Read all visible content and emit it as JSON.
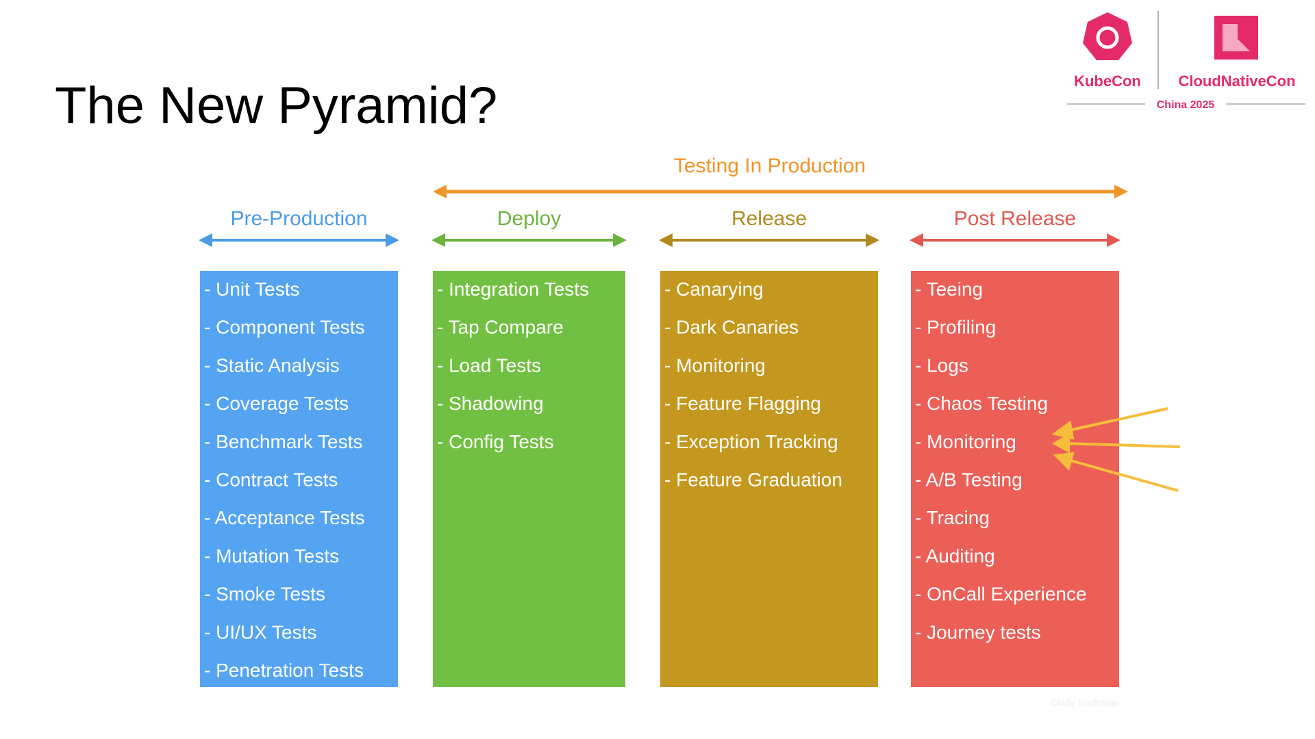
{
  "title": "The New Pyramid?",
  "logo": {
    "left": "KubeCon",
    "right": "CloudNativeCon",
    "sub": "China 2025"
  },
  "span_heading": "Testing In Production",
  "columns": [
    {
      "heading": "Pre-Production",
      "items": [
        "- Unit Tests",
        "- Component Tests",
        "- Static Analysis",
        "- Coverage Tests",
        "- Benchmark Tests",
        "- Contract Tests",
        "- Acceptance Tests",
        "- Mutation Tests",
        "- Smoke Tests",
        "- UI/UX Tests",
        "- Penetration Tests"
      ]
    },
    {
      "heading": "Deploy",
      "items": [
        "- Integration Tests",
        "- Tap Compare",
        "- Load Tests",
        "- Shadowing",
        "- Config Tests"
      ]
    },
    {
      "heading": "Release",
      "items": [
        "- Canarying",
        "- Dark Canaries",
        "- Monitoring",
        "- Feature Flagging",
        "- Exception Tracking",
        "- Feature Graduation"
      ]
    },
    {
      "heading": "Post Release",
      "items": [
        "- Teeing",
        "- Profiling",
        "- Logs",
        "- Chaos Testing",
        "- Monitoring",
        "- A/B Testing",
        "- Tracing",
        "- Auditing",
        "- OnCall Experience",
        "- Journey tests"
      ]
    }
  ],
  "credit": "Cindy Sridharan"
}
